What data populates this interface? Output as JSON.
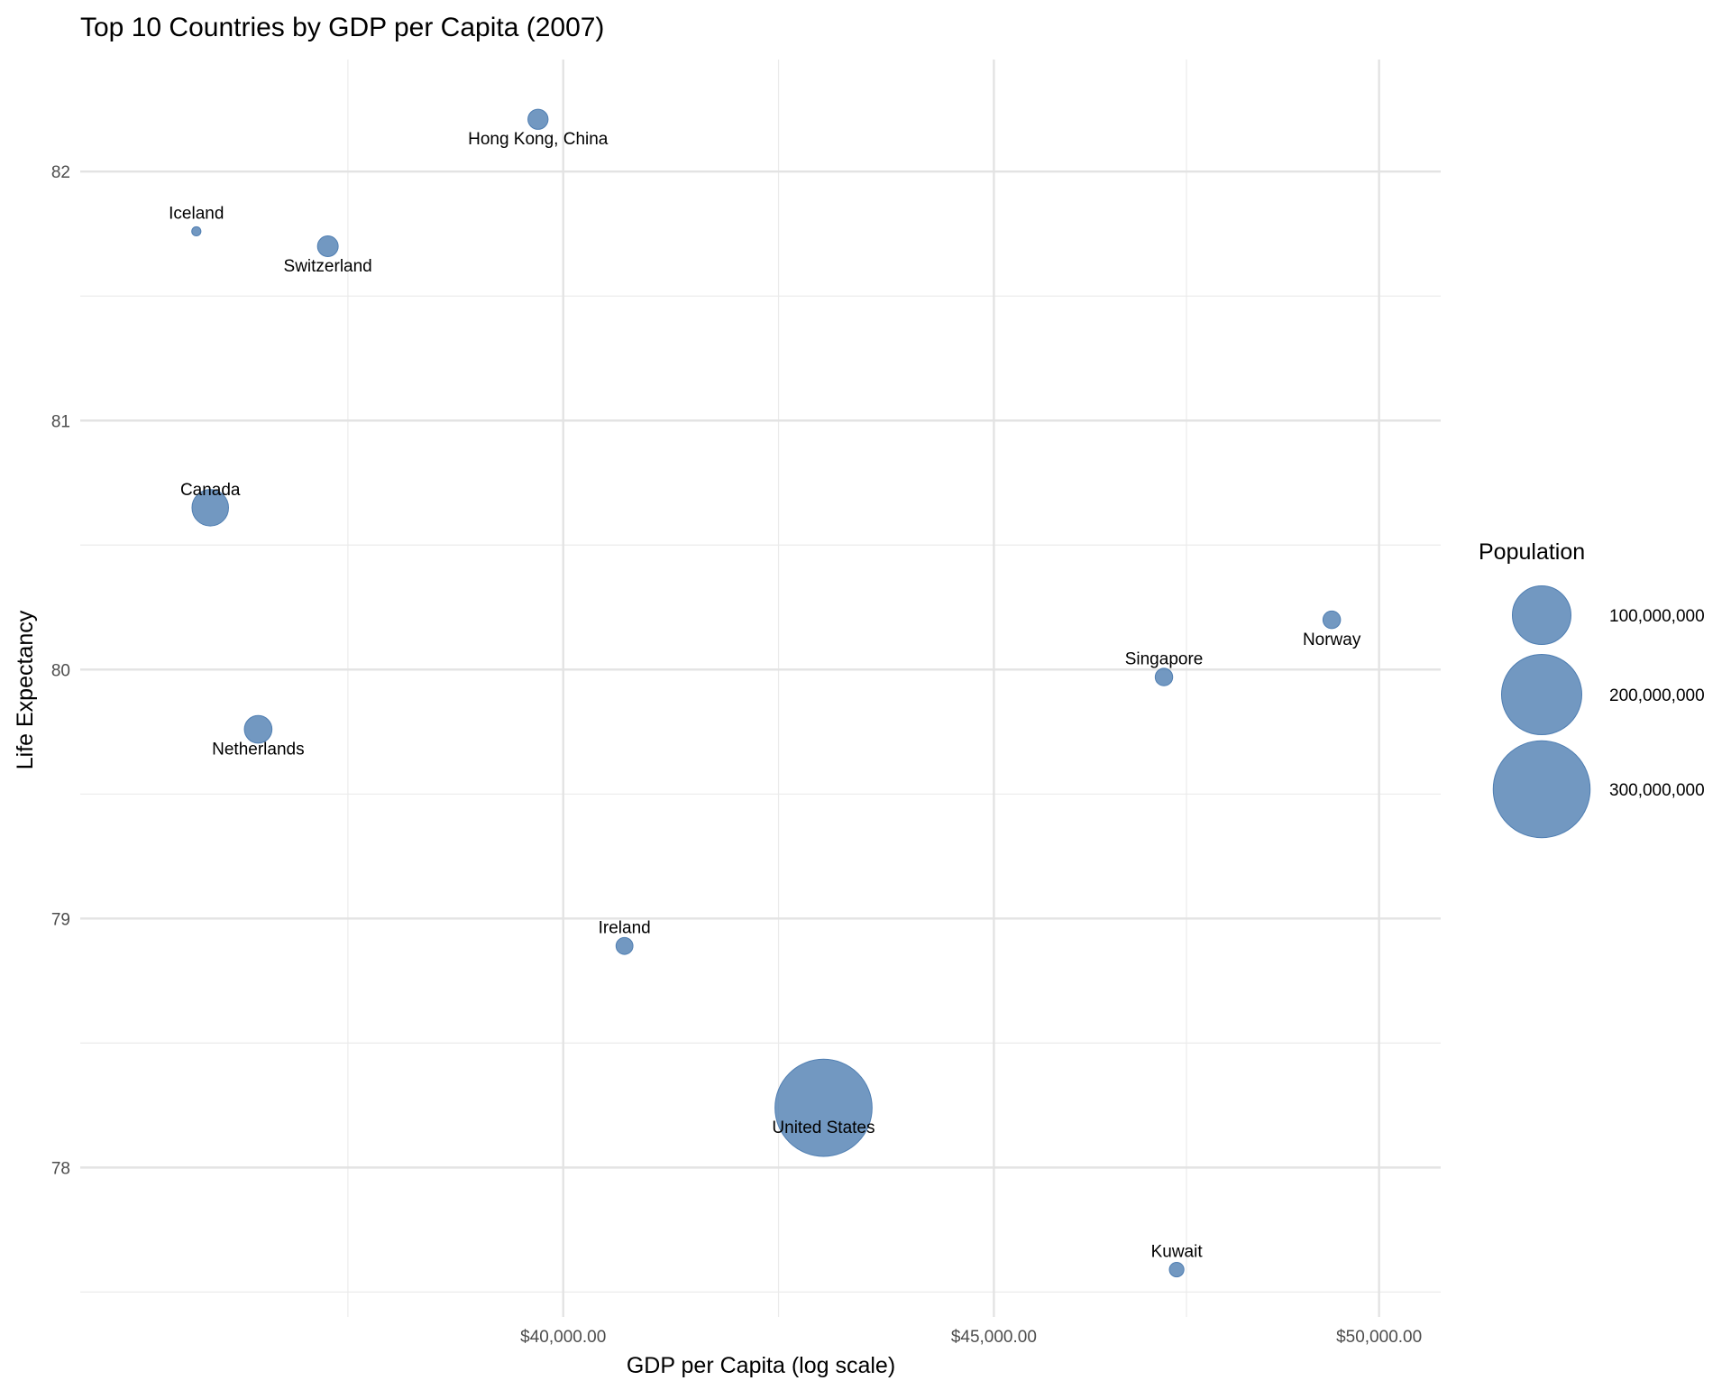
{
  "chart_data": {
    "type": "scatter",
    "title": "Top 10 Countries by GDP per Capita (2007)",
    "xlabel": "GDP per Capita (log scale)",
    "ylabel": "Life Expectancy",
    "x_scale": "log",
    "xlim": [
      35050,
      50850
    ],
    "ylim": [
      77.4,
      82.45
    ],
    "x_ticks": [
      40000,
      45000,
      50000
    ],
    "x_tick_labels": [
      "$40,000.00",
      "$45,000.00",
      "$50,000.00"
    ],
    "y_ticks": [
      78,
      79,
      80,
      81,
      82
    ],
    "y_tick_labels": [
      "78",
      "79",
      "80",
      "81",
      "82"
    ],
    "grid": true,
    "legend_position": "right",
    "legend": {
      "title": "Population",
      "entries": [
        {
          "value": 100000000,
          "label": "100,000,000"
        },
        {
          "value": 200000000,
          "label": "200,000,000"
        },
        {
          "value": 300000000,
          "label": "300,000,000"
        }
      ]
    },
    "point_color": "#4f7eb2",
    "points": [
      {
        "country": "Hong Kong, China",
        "gdp": 39725,
        "life_exp": 82.21,
        "population": 6980412,
        "label_pos": "below"
      },
      {
        "country": "Iceland",
        "gdp": 36181,
        "life_exp": 81.76,
        "population": 301931,
        "label_pos": "above"
      },
      {
        "country": "Switzerland",
        "gdp": 37506,
        "life_exp": 81.7,
        "population": 7554661,
        "label_pos": "below"
      },
      {
        "country": "Canada",
        "gdp": 36319,
        "life_exp": 80.65,
        "population": 33390141,
        "label_pos": "above"
      },
      {
        "country": "Netherlands",
        "gdp": 36798,
        "life_exp": 79.76,
        "population": 16570613,
        "label_pos": "below"
      },
      {
        "country": "Norway",
        "gdp": 49357,
        "life_exp": 80.2,
        "population": 4627926,
        "label_pos": "below"
      },
      {
        "country": "Singapore",
        "gdp": 47143,
        "life_exp": 79.97,
        "population": 4553009,
        "label_pos": "above"
      },
      {
        "country": "Ireland",
        "gdp": 40676,
        "life_exp": 78.89,
        "population": 4109086,
        "label_pos": "above"
      },
      {
        "country": "United States",
        "gdp": 42952,
        "life_exp": 78.24,
        "population": 301139947,
        "label_pos": "below"
      },
      {
        "country": "Kuwait",
        "gdp": 47307,
        "life_exp": 77.59,
        "population": 2505559,
        "label_pos": "above"
      }
    ]
  }
}
